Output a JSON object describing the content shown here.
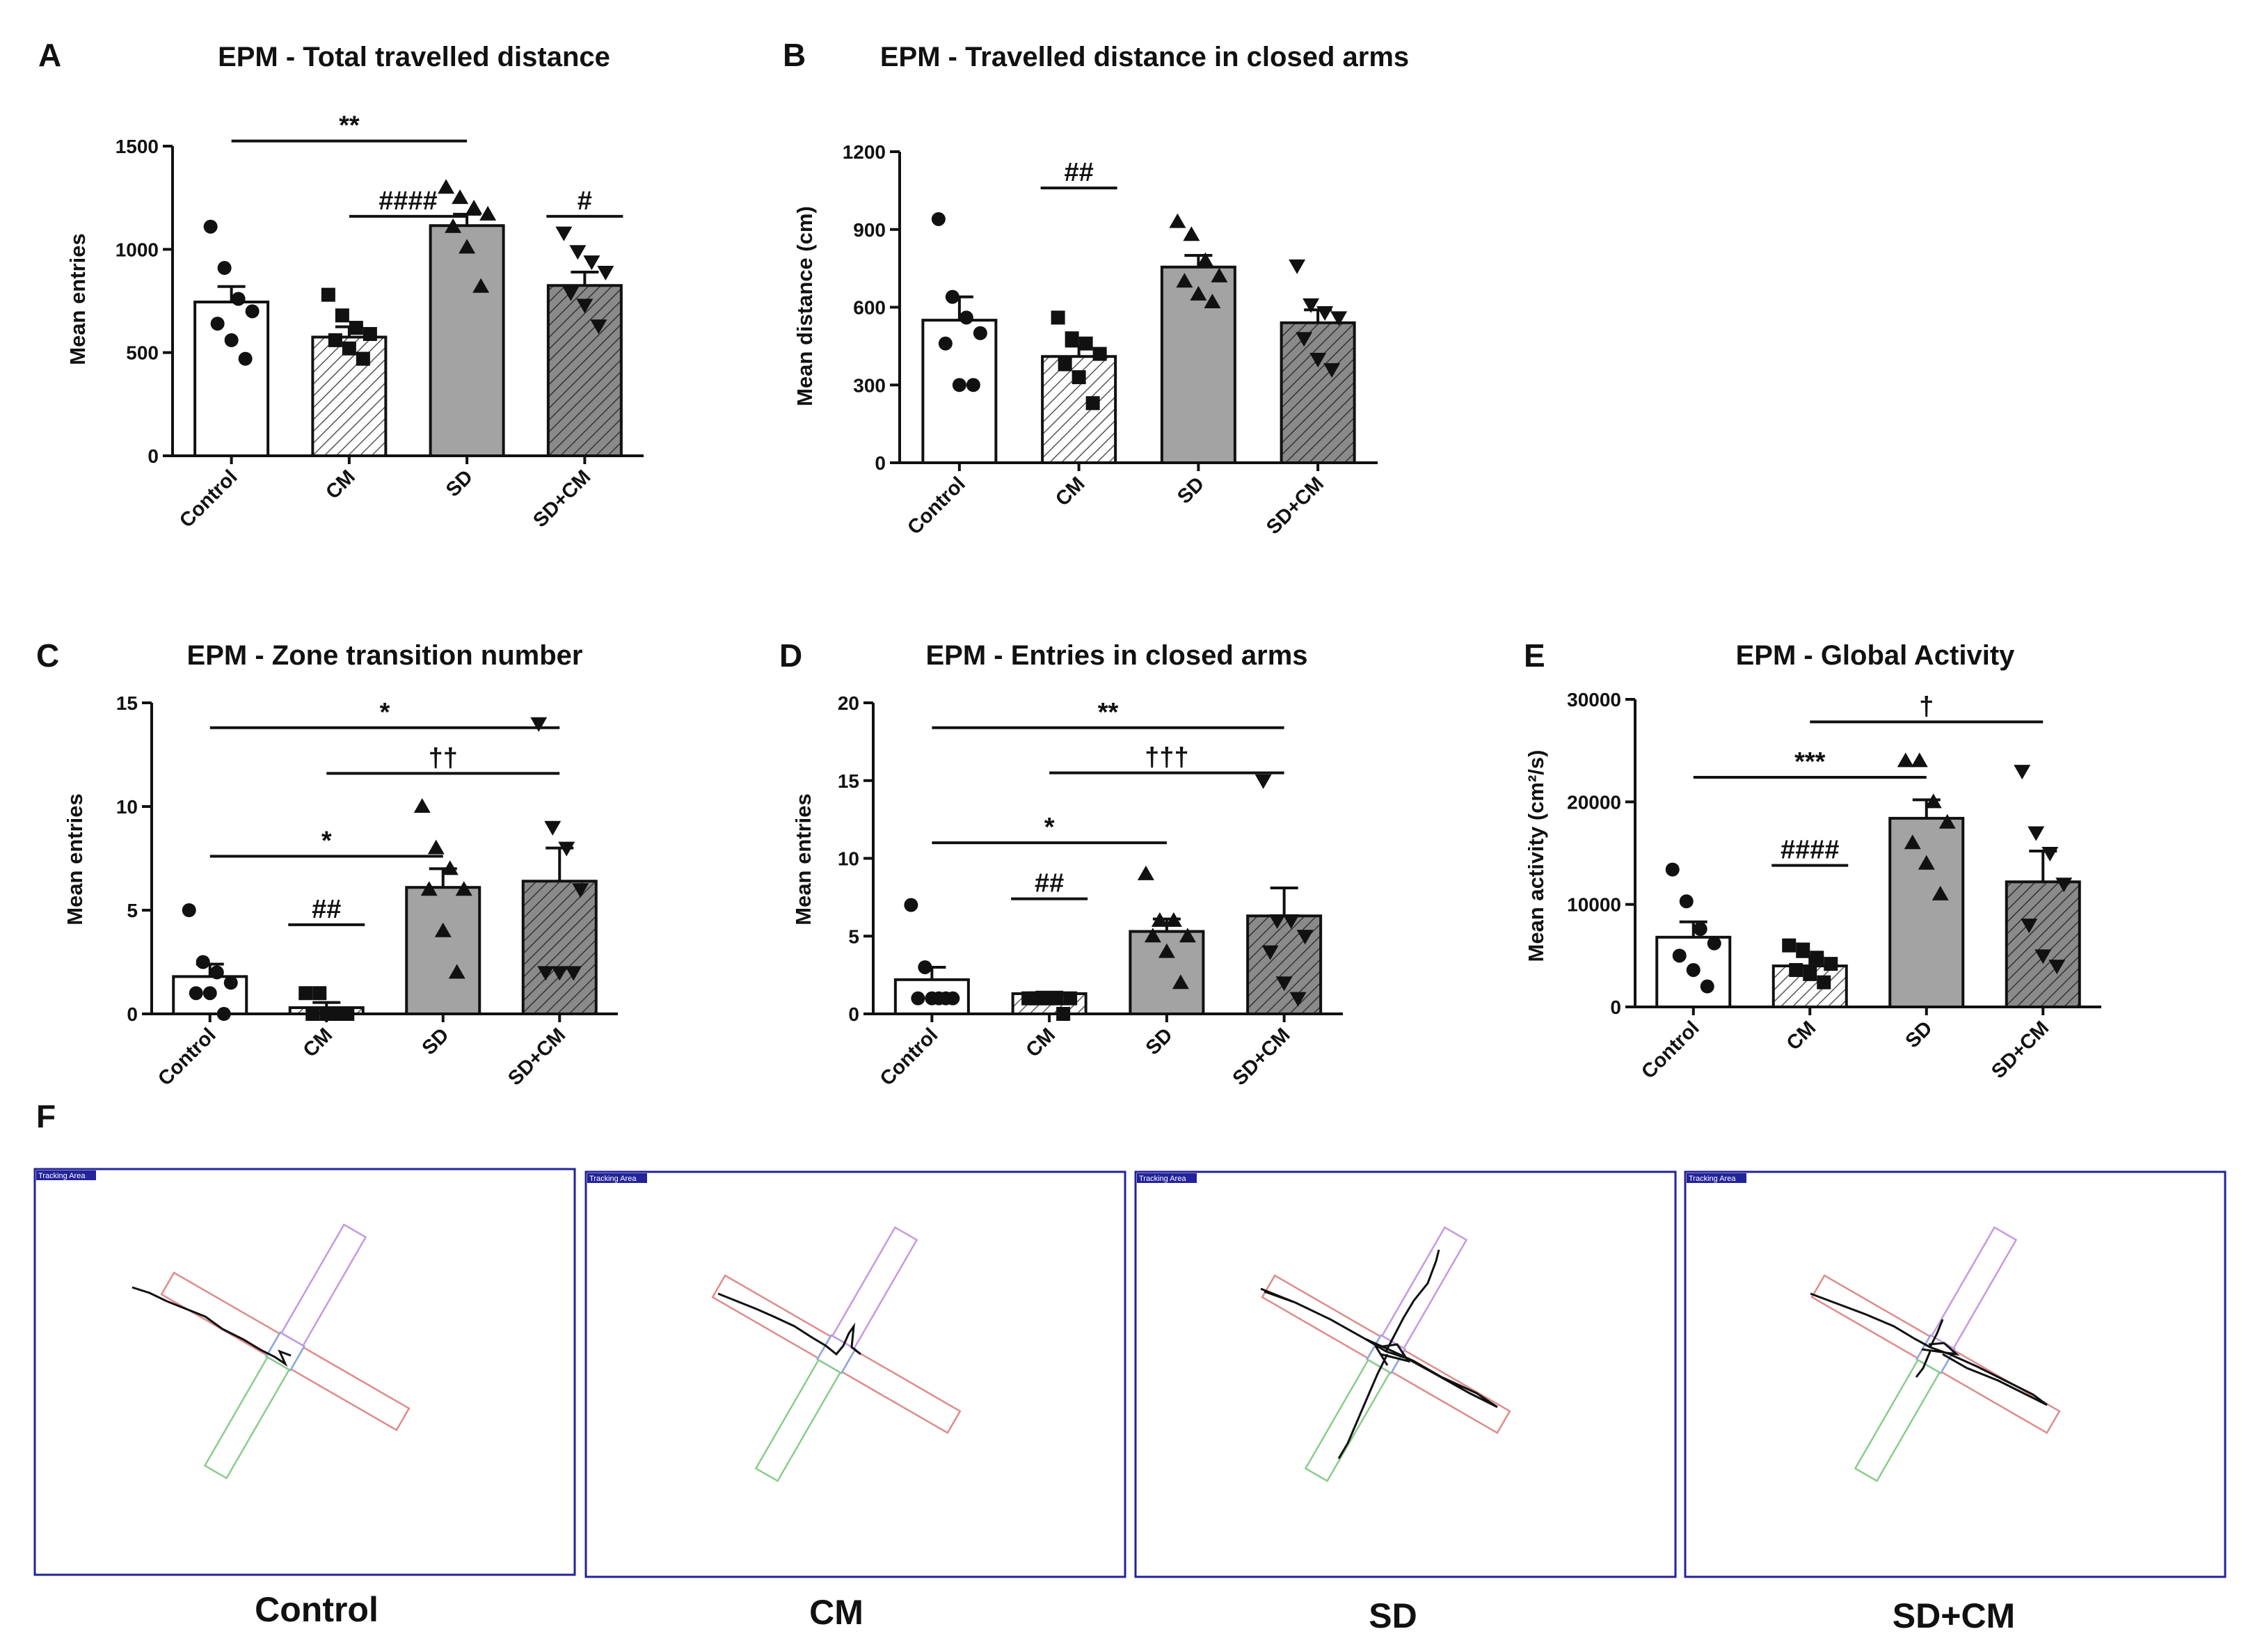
{
  "figure_labels": {
    "F": "F"
  },
  "chart_data": [
    {
      "panel": "A",
      "type": "bar",
      "title": "EPM - Total travelled distance",
      "ylabel": "Mean entries",
      "xlabel": "",
      "ylim": [
        0,
        1500
      ],
      "yticks": [
        0,
        500,
        1000,
        1500
      ],
      "categories": [
        "Control",
        "CM",
        "SD",
        "SD+CM"
      ],
      "values": [
        745,
        575,
        1115,
        825
      ],
      "errors": [
        75,
        50,
        55,
        65
      ],
      "points": [
        [
          1110,
          910,
          760,
          700,
          640,
          560,
          470
        ],
        [
          780,
          680,
          620,
          590,
          560,
          520,
          470
        ],
        [
          1300,
          1250,
          1200,
          1170,
          1110,
          1010,
          820
        ],
        [
          1080,
          990,
          940,
          890,
          790,
          730,
          630
        ]
      ],
      "annotations": [
        {
          "text": "**",
          "from": 0,
          "to": 2,
          "level": 1525
        },
        {
          "text": "####",
          "from": 1,
          "to": 2,
          "level": 1160
        },
        {
          "text": "#",
          "from": 3,
          "to": 3,
          "level": 1160
        }
      ]
    },
    {
      "panel": "B",
      "type": "bar",
      "title": "EPM - Travelled distance in closed arms",
      "ylabel": "Mean distance (cm)",
      "xlabel": "",
      "ylim": [
        0,
        1200
      ],
      "yticks": [
        0,
        300,
        600,
        900,
        1200
      ],
      "categories": [
        "Control",
        "CM",
        "SD",
        "SD+CM"
      ],
      "values": [
        550,
        410,
        755,
        540
      ],
      "errors": [
        90,
        40,
        45,
        50
      ],
      "points": [
        [
          940,
          640,
          560,
          500,
          460,
          300,
          300
        ],
        [
          560,
          480,
          460,
          420,
          380,
          330,
          230
        ],
        [
          930,
          880,
          780,
          720,
          700,
          650,
          620
        ],
        [
          760,
          610,
          580,
          560,
          480,
          400,
          360
        ]
      ],
      "annotations": [
        {
          "text": "##",
          "from": 1,
          "to": 1,
          "level": 1060
        }
      ]
    },
    {
      "panel": "C",
      "type": "bar",
      "title": "EPM - Zone transition number",
      "ylabel": "Mean entries",
      "xlabel": "",
      "ylim": [
        0,
        15
      ],
      "yticks": [
        0,
        5,
        10,
        15
      ],
      "categories": [
        "Control",
        "CM",
        "SD",
        "SD+CM"
      ],
      "values": [
        1.8,
        0.3,
        6.1,
        6.4
      ],
      "errors": [
        0.6,
        0.25,
        0.9,
        1.6
      ],
      "points": [
        [
          5,
          2.5,
          2,
          1.5,
          1,
          1,
          0
        ],
        [
          1,
          1,
          0,
          0,
          0,
          0,
          0
        ],
        [
          10,
          8,
          7,
          6,
          6,
          4,
          2
        ],
        [
          14,
          9,
          8,
          6,
          2,
          2,
          2
        ]
      ],
      "annotations": [
        {
          "text": "*",
          "from": 0,
          "to": 3,
          "level": 13.8
        },
        {
          "text": "††",
          "from": 1,
          "to": 3,
          "level": 11.6
        },
        {
          "text": "*",
          "from": 0,
          "to": 2,
          "level": 7.6
        },
        {
          "text": "##",
          "from": 1,
          "to": 1,
          "level": 4.3
        }
      ]
    },
    {
      "panel": "D",
      "type": "bar",
      "title": "EPM - Entries in closed arms",
      "ylabel": "Mean entries",
      "xlabel": "",
      "ylim": [
        0,
        20
      ],
      "yticks": [
        0,
        5,
        10,
        15,
        20
      ],
      "categories": [
        "Control",
        "CM",
        "SD",
        "SD+CM"
      ],
      "values": [
        2.2,
        1.3,
        5.3,
        6.3
      ],
      "errors": [
        0.8,
        0.1,
        0.8,
        1.8
      ],
      "points": [
        [
          7,
          3,
          1,
          1,
          1,
          1,
          1
        ],
        [
          1,
          1,
          1,
          1,
          1,
          1,
          0
        ],
        [
          9,
          6,
          6,
          5,
          5,
          4,
          2
        ],
        [
          15,
          6,
          6,
          5,
          4,
          2,
          1
        ]
      ],
      "annotations": [
        {
          "text": "**",
          "from": 0,
          "to": 3,
          "level": 18.4
        },
        {
          "text": "†††",
          "from": 1,
          "to": 3,
          "level": 15.5
        },
        {
          "text": "*",
          "from": 0,
          "to": 2,
          "level": 11
        },
        {
          "text": "##",
          "from": 1,
          "to": 1,
          "level": 7.4
        }
      ]
    },
    {
      "panel": "E",
      "type": "bar",
      "title": "EPM - Global Activity",
      "ylabel": "Mean activity (cm²/s)",
      "xlabel": "",
      "ylim": [
        0,
        30000
      ],
      "yticks": [
        0,
        10000,
        20000,
        30000
      ],
      "categories": [
        "Control",
        "CM",
        "SD",
        "SD+CM"
      ],
      "values": [
        6800,
        4000,
        18400,
        12200
      ],
      "errors": [
        1500,
        900,
        1800,
        3000
      ],
      "points": [
        [
          13400,
          10300,
          7600,
          6200,
          5000,
          3600,
          2000
        ],
        [
          6000,
          5600,
          4800,
          4200,
          3600,
          3200,
          2400
        ],
        [
          24000,
          24000,
          20000,
          18000,
          16000,
          14000,
          11000
        ],
        [
          23000,
          17000,
          15000,
          12000,
          8000,
          5000,
          4000
        ]
      ],
      "annotations": [
        {
          "text": "†",
          "from": 1,
          "to": 3,
          "level": 27800
        },
        {
          "text": "***",
          "from": 0,
          "to": 2,
          "level": 22400
        },
        {
          "text": "####",
          "from": 1,
          "to": 1,
          "level": 13800
        }
      ]
    }
  ],
  "tracks": [
    {
      "label": "Control",
      "area_label": "Tracking Area"
    },
    {
      "label": "CM",
      "area_label": "Tracking Area"
    },
    {
      "label": "SD",
      "area_label": "Tracking Area"
    },
    {
      "label": "SD+CM",
      "area_label": "Tracking Area"
    }
  ],
  "colors": {
    "control": "#ffffff",
    "cm": "#ffffff",
    "sd": "#a3a3a3",
    "sdcm": "#8a8a8a",
    "ink": "#111111",
    "frame": "#23239a",
    "open_arm": "#e08a8a",
    "closed_top": "#c49ae0",
    "closed_bottom": "#8acc8a",
    "center": "#8aa8e0",
    "track": "#111111"
  }
}
